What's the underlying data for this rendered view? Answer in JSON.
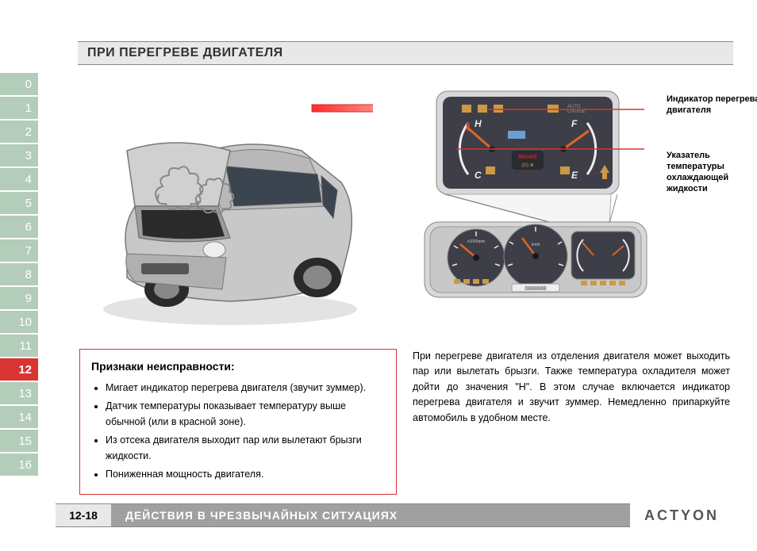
{
  "title": "ПРИ ПЕРЕГРЕВЕ ДВИГАТЕЛЯ",
  "tabs": [
    "0",
    "1",
    "2",
    "3",
    "4",
    "5",
    "6",
    "7",
    "8",
    "9",
    "10",
    "11",
    "12",
    "13",
    "14",
    "15",
    "16"
  ],
  "active_tab_index": 12,
  "colors": {
    "tab_normal": "#b4ccba",
    "tab_active": "#d93333",
    "box_border": "#d93333",
    "arrow_start": "#ff3333",
    "arrow_end": "#ffddcc",
    "gauge_bg_outer": "#e0e0e0",
    "gauge_bg_inner": "#4a4a55",
    "needle": "#cc5522",
    "car_body": "#c8c8c8"
  },
  "labels": {
    "overheat_indicator": "Индикатор перегрева двигателя",
    "coolant_gauge": "Указатель температуры охлаждающей жидкости"
  },
  "gauge_detail": {
    "left_top": "H",
    "left_bottom": "C",
    "right_top": "F",
    "right_bottom": "E",
    "brake_label": "BRAKE"
  },
  "symptoms": {
    "title": "Признаки неисправности:",
    "items": [
      "Мигает индикатор перегрева двигателя (звучит зуммер).",
      "Датчик температуры показывает температуру выше обычной (или в красной зоне).",
      "Из отсека двигателя выходит пар или вылетают брызги жидкости.",
      "Пониженная мощность двигателя."
    ]
  },
  "body_text": "При перегреве двигателя из отделения двигателя может выходить пар или вылетать брызги. Также температура охладителя может дойти до значения \"H\". В этом случае включается индикатор перегрева двигателя и звучит зуммер. Немедленно припаркуйте автомобиль в удобном месте.",
  "footer": {
    "pagenum": "12-18",
    "section": "ДЕЙСТВИЯ В ЧРЕЗВЫЧАЙНЫХ СИТУАЦИЯХ",
    "brand": "ACTYON"
  }
}
